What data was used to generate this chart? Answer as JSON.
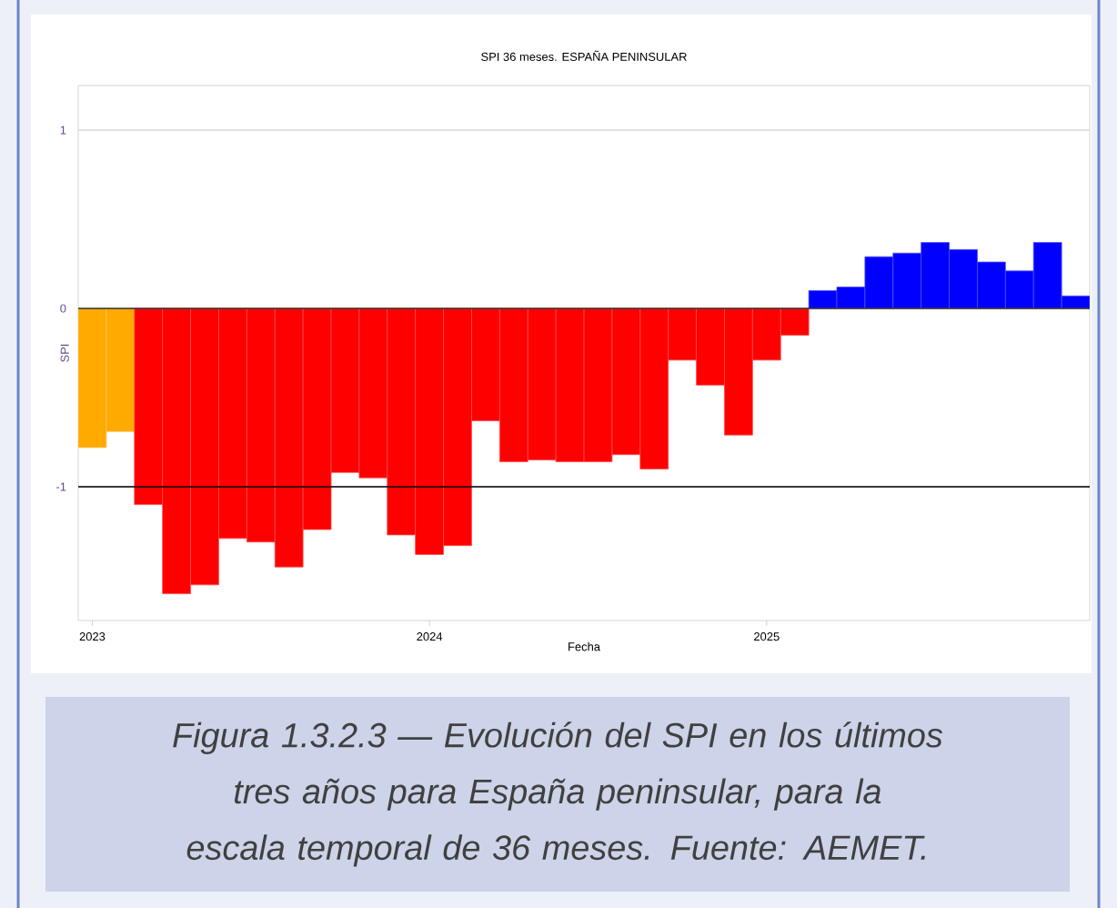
{
  "chart_data": {
    "type": "bar",
    "title": "SPI 36 meses. ESPAÑA PENINSULAR",
    "xlabel": "Fecha",
    "ylabel": "SPI",
    "x": [
      "2023-01",
      "2023-02",
      "2023-03",
      "2023-04",
      "2023-05",
      "2023-06",
      "2023-07",
      "2023-08",
      "2023-09",
      "2023-10",
      "2023-11",
      "2023-12",
      "2024-01",
      "2024-02",
      "2024-03",
      "2024-04",
      "2024-05",
      "2024-06",
      "2024-07",
      "2024-08",
      "2024-09",
      "2024-10",
      "2024-11",
      "2024-12",
      "2025-01",
      "2025-02",
      "2025-03",
      "2025-04",
      "2025-05",
      "2025-06",
      "2025-07",
      "2025-08",
      "2025-09",
      "2025-10",
      "2025-11",
      "2025-12"
    ],
    "values": [
      -0.78,
      -0.69,
      -1.1,
      -1.6,
      -1.55,
      -1.29,
      -1.31,
      -1.45,
      -1.24,
      -0.92,
      -0.95,
      -1.27,
      -1.38,
      -1.33,
      -0.63,
      -0.86,
      -0.85,
      -0.86,
      -0.86,
      -0.82,
      -0.9,
      -0.29,
      -0.43,
      -0.71,
      -0.29,
      -0.15,
      0.1,
      0.12,
      0.29,
      0.31,
      0.37,
      0.33,
      0.26,
      0.21,
      0.37,
      0.07
    ],
    "colors": [
      "#ffaa00",
      "#ffaa00",
      "#ff0000",
      "#ff0000",
      "#ff0000",
      "#ff0000",
      "#ff0000",
      "#ff0000",
      "#ff0000",
      "#ff0000",
      "#ff0000",
      "#ff0000",
      "#ff0000",
      "#ff0000",
      "#ff0000",
      "#ff0000",
      "#ff0000",
      "#ff0000",
      "#ff0000",
      "#ff0000",
      "#ff0000",
      "#ff0000",
      "#ff0000",
      "#ff0000",
      "#ff0000",
      "#ff0000",
      "#0000ff",
      "#0000ff",
      "#0000ff",
      "#0000ff",
      "#0000ff",
      "#0000ff",
      "#0000ff",
      "#0000ff",
      "#0000ff",
      "#0000ff"
    ],
    "xlim": [
      "2022-12-16",
      "2025-12-16"
    ],
    "xticks": [
      "2023",
      "2024",
      "2025"
    ],
    "ylim": [
      -1.75,
      1.25
    ],
    "yticks": [
      -1,
      0,
      1
    ],
    "grid": "y",
    "ref_lines": [
      {
        "axis": "y",
        "value": 0,
        "color": "#333333"
      },
      {
        "axis": "y",
        "value": -1,
        "color": "#000000"
      }
    ],
    "annotations": [
      "Figura 1.3.2.3 — Evolución del SPI en los últimos tres años para España peninsular, para la escala temporal de 36 meses. Fuente: AEMET."
    ]
  }
}
